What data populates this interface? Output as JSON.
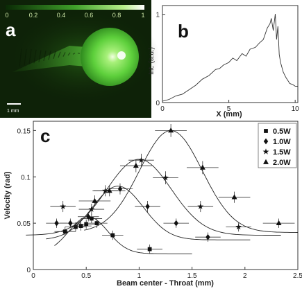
{
  "panels": {
    "a": {
      "label": "a",
      "colorbar_ticks": [
        "0",
        "0.2",
        "0.4",
        "0.6",
        "0.8",
        "1"
      ],
      "colorbar_values": [
        0,
        0.2,
        0.4,
        0.6,
        0.8,
        1
      ],
      "scalebar_label": "1 mm",
      "colors": {
        "background": "#0e2208",
        "glow": "#5fd040",
        "core": "#e8ffd0"
      }
    },
    "b": {
      "label": "b"
    },
    "c": {
      "label": "c"
    }
  },
  "chart_data": [
    {
      "type": "line",
      "panel": "b",
      "xlabel": "X (mm)",
      "ylabel": "Int. (a.u.)",
      "xlim": [
        0,
        10.2
      ],
      "ylim": [
        0,
        1.1
      ],
      "xticks": [
        0,
        5,
        10
      ],
      "yticks": [
        0,
        1
      ],
      "series": [
        {
          "x": [
            0,
            0.5,
            1,
            1.5,
            2,
            2.5,
            3,
            3.5,
            4,
            4.3,
            4.6,
            5,
            5.3,
            5.6,
            6,
            6.3,
            6.6,
            7,
            7.3,
            7.6,
            7.9,
            8.1,
            8.2,
            8.35,
            8.5,
            8.6,
            8.7,
            8.8,
            8.9,
            9.1,
            9.3,
            9.6,
            9.8,
            10,
            10.2
          ],
          "y": [
            0.01,
            0.04,
            0.07,
            0.1,
            0.14,
            0.2,
            0.26,
            0.31,
            0.37,
            0.39,
            0.42,
            0.46,
            0.5,
            0.48,
            0.55,
            0.53,
            0.6,
            0.63,
            0.67,
            0.72,
            0.84,
            0.9,
            0.95,
            0.82,
            1.0,
            0.72,
            0.86,
            0.55,
            0.45,
            0.35,
            0.28,
            0.22,
            0.2,
            0.19,
            0.18
          ]
        }
      ]
    },
    {
      "type": "scatter",
      "panel": "c",
      "xlabel": "Beam center - Throat (mm)",
      "ylabel": "Velocity (rad)",
      "xlim": [
        0,
        2.5
      ],
      "ylim": [
        0,
        0.16
      ],
      "xticks": [
        0,
        0.5,
        1,
        1.5,
        2,
        2.5
      ],
      "yticks": [
        0,
        0.05,
        0.1,
        0.15
      ],
      "legend_position": "top-right",
      "series": [
        {
          "name": "0.5W",
          "marker": "square",
          "x": [
            0.3,
            0.4,
            0.45,
            0.5,
            0.55,
            0.6,
            0.75,
            1.1
          ],
          "y": [
            0.041,
            0.046,
            0.047,
            0.049,
            0.055,
            0.05,
            0.037,
            0.022
          ],
          "xerr": [
            0.1,
            0.1,
            0.1,
            0.1,
            0.1,
            0.1,
            0.1,
            0.12
          ],
          "yerr": [
            0.005,
            0.005,
            0.005,
            0.005,
            0.005,
            0.005,
            0.005,
            0.005
          ],
          "fit": {
            "peak_x": 0.52,
            "peak_y": 0.057,
            "width": 0.26,
            "base": 0.017
          }
        },
        {
          "name": "1.0W",
          "marker": "diamond",
          "x": [
            0.22,
            0.35,
            0.52,
            0.82,
            1.08,
            1.35,
            1.65
          ],
          "y": [
            0.05,
            0.05,
            0.057,
            0.087,
            0.068,
            0.05,
            0.035
          ],
          "xerr": [
            0.1,
            0.1,
            0.1,
            0.12,
            0.12,
            0.12,
            0.12
          ],
          "yerr": [
            0.005,
            0.005,
            0.005,
            0.006,
            0.006,
            0.005,
            0.005
          ],
          "fit": {
            "peak_x": 0.8,
            "peak_y": 0.09,
            "width": 0.34,
            "base": 0.032
          }
        },
        {
          "name": "1.5W",
          "marker": "star",
          "x": [
            0.28,
            0.55,
            0.68,
            1.02,
            1.25,
            1.58,
            1.94
          ],
          "y": [
            0.068,
            0.065,
            0.085,
            0.118,
            0.099,
            0.068,
            0.046
          ],
          "xerr": [
            0.12,
            0.12,
            0.12,
            0.12,
            0.12,
            0.12,
            0.12
          ],
          "yerr": [
            0.006,
            0.006,
            0.006,
            0.007,
            0.007,
            0.006,
            0.005
          ],
          "fit": {
            "peak_x": 1.0,
            "peak_y": 0.119,
            "width": 0.43,
            "base": 0.037
          }
        },
        {
          "name": "2.0W",
          "marker": "triangle",
          "x": [
            0.58,
            0.72,
            0.97,
            1.3,
            1.6,
            1.9,
            2.32
          ],
          "y": [
            0.074,
            0.085,
            0.112,
            0.15,
            0.11,
            0.078,
            0.05
          ],
          "xerr": [
            0.15,
            0.15,
            0.15,
            0.15,
            0.15,
            0.15,
            0.15
          ],
          "yerr": [
            0.006,
            0.006,
            0.007,
            0.007,
            0.007,
            0.006,
            0.005
          ],
          "fit": {
            "peak_x": 1.3,
            "peak_y": 0.15,
            "width": 0.42,
            "base": 0.04
          }
        }
      ]
    }
  ]
}
